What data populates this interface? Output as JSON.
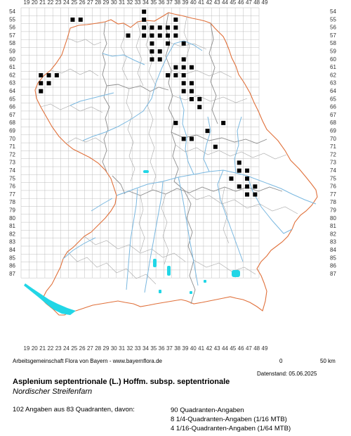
{
  "map": {
    "x_labels": [
      "19",
      "20",
      "21",
      "22",
      "23",
      "24",
      "25",
      "26",
      "27",
      "28",
      "29",
      "30",
      "31",
      "32",
      "33",
      "34",
      "35",
      "36",
      "37",
      "38",
      "39",
      "40",
      "41",
      "42",
      "43",
      "44",
      "45",
      "46",
      "47",
      "48",
      "49"
    ],
    "y_labels": [
      "54",
      "55",
      "56",
      "57",
      "58",
      "59",
      "60",
      "61",
      "62",
      "63",
      "64",
      "65",
      "66",
      "67",
      "68",
      "69",
      "70",
      "71",
      "72",
      "73",
      "74",
      "75",
      "76",
      "77",
      "78",
      "79",
      "80",
      "81",
      "82",
      "83",
      "84",
      "85",
      "86",
      "87"
    ],
    "colors": {
      "grid": "#bdbdbd",
      "border": "#e0703a",
      "district": "#8c8c8c",
      "river": "#7ab8e0",
      "lake": "#22d6e6",
      "marker": "#000000"
    },
    "icon": "filled-square-marker",
    "occurrences": [
      {
        "q": 54,
        "c": 34
      },
      {
        "q": 55,
        "c": 25
      },
      {
        "q": 55,
        "c": 26
      },
      {
        "q": 55,
        "c": 34
      },
      {
        "q": 55,
        "c": 38
      },
      {
        "q": 56,
        "c": 34
      },
      {
        "q": 56,
        "c": 35
      },
      {
        "q": 56,
        "c": 36
      },
      {
        "q": 56,
        "c": 37
      },
      {
        "q": 56,
        "c": 38
      },
      {
        "q": 57,
        "c": 32
      },
      {
        "q": 57,
        "c": 34
      },
      {
        "q": 57,
        "c": 35
      },
      {
        "q": 57,
        "c": 36
      },
      {
        "q": 57,
        "c": 37
      },
      {
        "q": 57,
        "c": 38
      },
      {
        "q": 58,
        "c": 35
      },
      {
        "q": 58,
        "c": 37
      },
      {
        "q": 58,
        "c": 39
      },
      {
        "q": 59,
        "c": 35
      },
      {
        "q": 59,
        "c": 36
      },
      {
        "q": 60,
        "c": 35
      },
      {
        "q": 60,
        "c": 36
      },
      {
        "q": 60,
        "c": 39
      },
      {
        "q": 61,
        "c": 38
      },
      {
        "q": 61,
        "c": 39
      },
      {
        "q": 61,
        "c": 40
      },
      {
        "q": 62,
        "c": 21
      },
      {
        "q": 62,
        "c": 22
      },
      {
        "q": 62,
        "c": 23
      },
      {
        "q": 62,
        "c": 37
      },
      {
        "q": 62,
        "c": 38
      },
      {
        "q": 62,
        "c": 39
      },
      {
        "q": 63,
        "c": 21
      },
      {
        "q": 63,
        "c": 22
      },
      {
        "q": 63,
        "c": 39
      },
      {
        "q": 63,
        "c": 40
      },
      {
        "q": 64,
        "c": 21
      },
      {
        "q": 64,
        "c": 39
      },
      {
        "q": 64,
        "c": 40
      },
      {
        "q": 65,
        "c": 40
      },
      {
        "q": 65,
        "c": 41
      },
      {
        "q": 66,
        "c": 41
      },
      {
        "q": 68,
        "c": 38
      },
      {
        "q": 68,
        "c": 44
      },
      {
        "q": 69,
        "c": 42
      },
      {
        "q": 70,
        "c": 39
      },
      {
        "q": 70,
        "c": 40
      },
      {
        "q": 71,
        "c": 43
      },
      {
        "q": 73,
        "c": 46
      },
      {
        "q": 74,
        "c": 46
      },
      {
        "q": 74,
        "c": 47
      },
      {
        "q": 75,
        "c": 45
      },
      {
        "q": 75,
        "c": 47
      },
      {
        "q": 76,
        "c": 46
      },
      {
        "q": 76,
        "c": 47
      },
      {
        "q": 76,
        "c": 48
      },
      {
        "q": 77,
        "c": 47
      },
      {
        "q": 77,
        "c": 48
      }
    ]
  },
  "footer": {
    "credit": "Arbeitsgemeinschaft Flora von Bayern - www.bayernflora.de",
    "scale_start": "0",
    "scale_end": "50 km",
    "date": "Datenstand: 05.06.2025"
  },
  "species": {
    "scientific_name": "Asplenium septentrionale (L.) Hoffm. subsp. septentrionale",
    "common_name": "Nordischer Streifenfarn"
  },
  "stats": {
    "summary": "102 Angaben aus 83 Quadranten, davon:",
    "line1": "90 Quadranten-Angaben",
    "line2": "8 1/4-Quadranten-Angaben (1/16 MTB)",
    "line3": "4 1/16-Quadranten-Angaben (1/64 MTB)"
  }
}
